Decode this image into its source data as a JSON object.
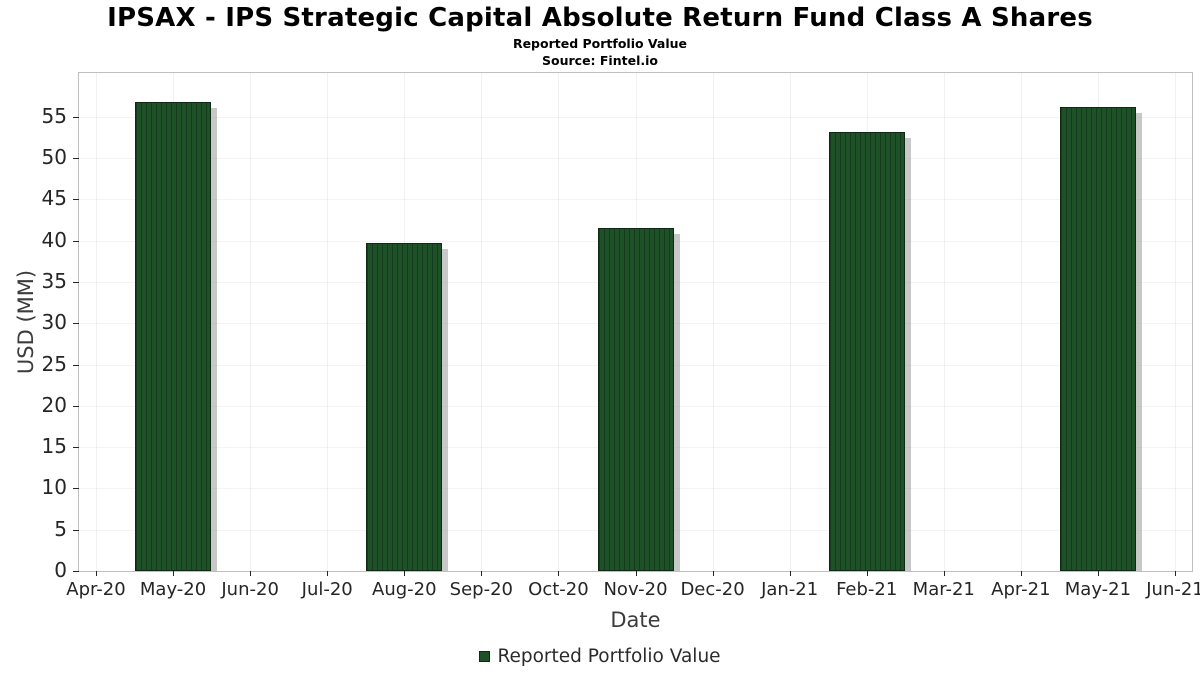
{
  "chart_data": {
    "type": "bar",
    "title": "IPSAX - IPS Strategic Capital Absolute Return Fund Class A Shares",
    "subtitle": "Reported Portfolio Value",
    "source": "Source: Fintel.io",
    "xlabel": "Date",
    "ylabel": "USD (MM)",
    "x_ticks": [
      "Apr-20",
      "May-20",
      "Jun-20",
      "Jul-20",
      "Aug-20",
      "Sep-20",
      "Oct-20",
      "Nov-20",
      "Dec-20",
      "Jan-21",
      "Feb-21",
      "Mar-21",
      "Apr-21",
      "May-21",
      "Jun-21"
    ],
    "y_ticks": [
      0,
      5,
      10,
      15,
      20,
      25,
      30,
      35,
      40,
      45,
      50,
      55
    ],
    "ylim": [
      0,
      60.3
    ],
    "grid": true,
    "categories": [
      "May-20",
      "Aug-20",
      "Nov-20",
      "Feb-21",
      "May-21"
    ],
    "values": [
      56.8,
      39.7,
      41.5,
      53.2,
      56.2
    ],
    "legend": {
      "label": "Reported Portfolio Value",
      "position": "bottom"
    },
    "colors": {
      "bar": "#1e5128",
      "bar_hatch": "#153a1d",
      "bar_edge": "#0e2a12",
      "shadow": "#9a9a9a",
      "axis": "#bfbfbf",
      "tick_text": "#262626",
      "label_text": "#3c3c3c"
    }
  }
}
